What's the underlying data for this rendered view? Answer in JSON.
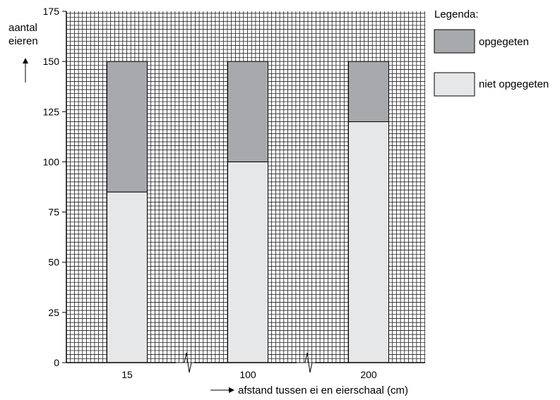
{
  "chart_data": {
    "type": "bar",
    "stacked": true,
    "categories": [
      "15",
      "100",
      "200"
    ],
    "series": [
      {
        "name": "niet opgegeten",
        "color": "#e6e7e8",
        "values": [
          85,
          100,
          120
        ]
      },
      {
        "name": "opgegeten",
        "color": "#a7a9ac",
        "values": [
          65,
          50,
          30
        ]
      }
    ],
    "ylabel_line1": "aantal",
    "ylabel_line2": "eieren",
    "xlabel": "afstand tussen ei en eierschaal (cm)",
    "ylim": [
      0,
      175
    ],
    "yticks": [
      0,
      25,
      50,
      75,
      100,
      125,
      150,
      175
    ],
    "grid": true,
    "axis_breaks": true,
    "legend": {
      "title": "Legenda:",
      "position": "right",
      "items": [
        "opgegeten",
        "niet opgegeten"
      ]
    }
  }
}
